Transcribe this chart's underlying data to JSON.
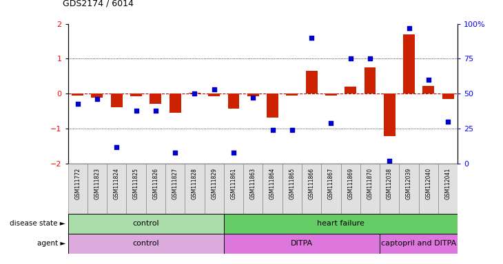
{
  "title": "GDS2174 / 6014",
  "samples": [
    "GSM111772",
    "GSM111823",
    "GSM111824",
    "GSM111825",
    "GSM111826",
    "GSM111827",
    "GSM111828",
    "GSM111829",
    "GSM111861",
    "GSM111863",
    "GSM111864",
    "GSM111865",
    "GSM111866",
    "GSM111867",
    "GSM111869",
    "GSM111870",
    "GSM112038",
    "GSM112039",
    "GSM112040",
    "GSM112041"
  ],
  "log2_ratio": [
    -0.05,
    -0.12,
    -0.38,
    -0.08,
    -0.28,
    -0.55,
    0.03,
    -0.08,
    -0.42,
    -0.08,
    -0.68,
    -0.05,
    0.65,
    -0.05,
    0.2,
    0.75,
    -1.22,
    1.7,
    0.22,
    -0.15
  ],
  "pct_rank": [
    43,
    46,
    12,
    38,
    38,
    8,
    50,
    53,
    8,
    47,
    24,
    24,
    90,
    29,
    75,
    75,
    2,
    97,
    60,
    30
  ],
  "disease_state_groups": [
    {
      "label": "control",
      "start": 0,
      "end": 7,
      "color": "#aaddaa"
    },
    {
      "label": "heart failure",
      "start": 8,
      "end": 19,
      "color": "#66cc66"
    }
  ],
  "agent_groups": [
    {
      "label": "control",
      "start": 0,
      "end": 7,
      "color": "#ddaadd"
    },
    {
      "label": "DITPA",
      "start": 8,
      "end": 15,
      "color": "#dd77dd"
    },
    {
      "label": "captopril and DITPA",
      "start": 16,
      "end": 19,
      "color": "#dd77dd"
    }
  ],
  "bar_color": "#cc2200",
  "dot_color": "#0000cc",
  "zero_line_color": "#cc0000",
  "ylim_left": [
    -2,
    2
  ],
  "ylim_right": [
    0,
    100
  ],
  "yticks_left": [
    -2,
    -1,
    0,
    1,
    2
  ],
  "yticks_right": [
    0,
    25,
    50,
    75,
    100
  ],
  "ytick_labels_right": [
    "0",
    "25",
    "50",
    "75",
    "100%"
  ]
}
